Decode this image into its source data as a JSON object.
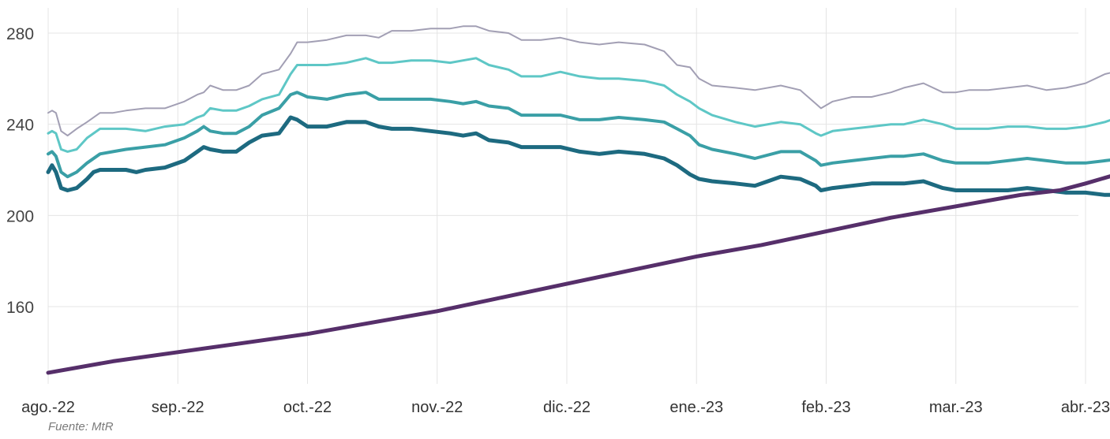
{
  "source": "Fuente: MtR",
  "chart_data": {
    "type": "line",
    "title": "",
    "xlabel": "",
    "ylabel": "",
    "x_ticks": [
      "ago.-22",
      "sep.-22",
      "oct.-22",
      "nov.-22",
      "dic.-22",
      "ene.-23",
      "feb.-23",
      "mar.-23",
      "abr.-23"
    ],
    "y_ticks": [
      160,
      200,
      240,
      280
    ],
    "ylim": [
      125,
      290
    ],
    "grid": true,
    "legend": "none",
    "series": [
      {
        "color": "#a29fb4",
        "end_label": "265",
        "values": [
          [
            0,
            245
          ],
          [
            0.03,
            246
          ],
          [
            0.06,
            245
          ],
          [
            0.1,
            237
          ],
          [
            0.15,
            235
          ],
          [
            0.22,
            238
          ],
          [
            0.3,
            241
          ],
          [
            0.4,
            245
          ],
          [
            0.5,
            245
          ],
          [
            0.6,
            246
          ],
          [
            0.75,
            247
          ],
          [
            0.9,
            247
          ],
          [
            1.05,
            250
          ],
          [
            1.15,
            253
          ],
          [
            1.2,
            254
          ],
          [
            1.25,
            257
          ],
          [
            1.35,
            255
          ],
          [
            1.45,
            255
          ],
          [
            1.55,
            257
          ],
          [
            1.65,
            262
          ],
          [
            1.78,
            264
          ],
          [
            1.87,
            271
          ],
          [
            1.92,
            276
          ],
          [
            2.0,
            276
          ],
          [
            2.15,
            277
          ],
          [
            2.3,
            279
          ],
          [
            2.45,
            279
          ],
          [
            2.55,
            278
          ],
          [
            2.65,
            281
          ],
          [
            2.8,
            281
          ],
          [
            2.95,
            282
          ],
          [
            3.1,
            282
          ],
          [
            3.2,
            283
          ],
          [
            3.3,
            283
          ],
          [
            3.4,
            281
          ],
          [
            3.55,
            280
          ],
          [
            3.65,
            277
          ],
          [
            3.8,
            277
          ],
          [
            3.95,
            278
          ],
          [
            4.1,
            276
          ],
          [
            4.25,
            275
          ],
          [
            4.4,
            276
          ],
          [
            4.6,
            275
          ],
          [
            4.75,
            272
          ],
          [
            4.85,
            266
          ],
          [
            4.95,
            265
          ],
          [
            5.02,
            260
          ],
          [
            5.12,
            257
          ],
          [
            5.3,
            256
          ],
          [
            5.45,
            255
          ],
          [
            5.65,
            257
          ],
          [
            5.8,
            255
          ],
          [
            5.92,
            249
          ],
          [
            5.96,
            247
          ],
          [
            6.05,
            250
          ],
          [
            6.2,
            252
          ],
          [
            6.35,
            252
          ],
          [
            6.5,
            254
          ],
          [
            6.6,
            256
          ],
          [
            6.75,
            258
          ],
          [
            6.9,
            254
          ],
          [
            7.0,
            254
          ],
          [
            7.1,
            255
          ],
          [
            7.25,
            255
          ],
          [
            7.4,
            256
          ],
          [
            7.55,
            257
          ],
          [
            7.7,
            255
          ],
          [
            7.85,
            256
          ],
          [
            8.0,
            258
          ],
          [
            8.15,
            262
          ],
          [
            8.3,
            264
          ],
          [
            8.45,
            265
          ],
          [
            8.5,
            263
          ],
          [
            8.56,
            265
          ]
        ]
      },
      {
        "color": "#5ec7c6",
        "end_label": "246",
        "values": [
          [
            0,
            236
          ],
          [
            0.03,
            237
          ],
          [
            0.06,
            236
          ],
          [
            0.1,
            229
          ],
          [
            0.15,
            228
          ],
          [
            0.22,
            229
          ],
          [
            0.3,
            234
          ],
          [
            0.4,
            238
          ],
          [
            0.5,
            238
          ],
          [
            0.6,
            238
          ],
          [
            0.75,
            237
          ],
          [
            0.9,
            239
          ],
          [
            1.05,
            240
          ],
          [
            1.15,
            243
          ],
          [
            1.2,
            244
          ],
          [
            1.25,
            247
          ],
          [
            1.35,
            246
          ],
          [
            1.45,
            246
          ],
          [
            1.55,
            248
          ],
          [
            1.65,
            251
          ],
          [
            1.78,
            253
          ],
          [
            1.87,
            262
          ],
          [
            1.92,
            266
          ],
          [
            2.0,
            266
          ],
          [
            2.15,
            266
          ],
          [
            2.3,
            267
          ],
          [
            2.45,
            269
          ],
          [
            2.55,
            267
          ],
          [
            2.65,
            267
          ],
          [
            2.8,
            268
          ],
          [
            2.95,
            268
          ],
          [
            3.1,
            267
          ],
          [
            3.2,
            268
          ],
          [
            3.3,
            269
          ],
          [
            3.4,
            266
          ],
          [
            3.55,
            264
          ],
          [
            3.65,
            261
          ],
          [
            3.8,
            261
          ],
          [
            3.95,
            263
          ],
          [
            4.1,
            261
          ],
          [
            4.25,
            260
          ],
          [
            4.4,
            260
          ],
          [
            4.6,
            259
          ],
          [
            4.75,
            257
          ],
          [
            4.85,
            253
          ],
          [
            4.95,
            250
          ],
          [
            5.02,
            247
          ],
          [
            5.12,
            244
          ],
          [
            5.3,
            241
          ],
          [
            5.45,
            239
          ],
          [
            5.65,
            241
          ],
          [
            5.8,
            240
          ],
          [
            5.92,
            236
          ],
          [
            5.96,
            235
          ],
          [
            6.05,
            237
          ],
          [
            6.2,
            238
          ],
          [
            6.35,
            239
          ],
          [
            6.5,
            240
          ],
          [
            6.6,
            240
          ],
          [
            6.75,
            242
          ],
          [
            6.9,
            240
          ],
          [
            7.0,
            238
          ],
          [
            7.1,
            238
          ],
          [
            7.25,
            238
          ],
          [
            7.4,
            239
          ],
          [
            7.55,
            239
          ],
          [
            7.7,
            238
          ],
          [
            7.85,
            238
          ],
          [
            8.0,
            239
          ],
          [
            8.15,
            241
          ],
          [
            8.3,
            244
          ],
          [
            8.45,
            246
          ],
          [
            8.5,
            244
          ],
          [
            8.56,
            246
          ]
        ]
      },
      {
        "color": "#3a9fa6",
        "end_label": "226",
        "values": [
          [
            0,
            227
          ],
          [
            0.03,
            228
          ],
          [
            0.06,
            226
          ],
          [
            0.1,
            219
          ],
          [
            0.15,
            217
          ],
          [
            0.22,
            219
          ],
          [
            0.3,
            223
          ],
          [
            0.4,
            227
          ],
          [
            0.5,
            228
          ],
          [
            0.6,
            229
          ],
          [
            0.75,
            230
          ],
          [
            0.9,
            231
          ],
          [
            1.05,
            234
          ],
          [
            1.15,
            237
          ],
          [
            1.2,
            239
          ],
          [
            1.25,
            237
          ],
          [
            1.35,
            236
          ],
          [
            1.45,
            236
          ],
          [
            1.55,
            239
          ],
          [
            1.65,
            244
          ],
          [
            1.78,
            247
          ],
          [
            1.87,
            253
          ],
          [
            1.92,
            254
          ],
          [
            2.0,
            252
          ],
          [
            2.15,
            251
          ],
          [
            2.3,
            253
          ],
          [
            2.45,
            254
          ],
          [
            2.55,
            251
          ],
          [
            2.65,
            251
          ],
          [
            2.8,
            251
          ],
          [
            2.95,
            251
          ],
          [
            3.1,
            250
          ],
          [
            3.2,
            249
          ],
          [
            3.3,
            250
          ],
          [
            3.4,
            248
          ],
          [
            3.55,
            247
          ],
          [
            3.65,
            244
          ],
          [
            3.8,
            244
          ],
          [
            3.95,
            244
          ],
          [
            4.1,
            242
          ],
          [
            4.25,
            242
          ],
          [
            4.4,
            243
          ],
          [
            4.6,
            242
          ],
          [
            4.75,
            241
          ],
          [
            4.85,
            238
          ],
          [
            4.95,
            235
          ],
          [
            5.02,
            231
          ],
          [
            5.12,
            229
          ],
          [
            5.3,
            227
          ],
          [
            5.45,
            225
          ],
          [
            5.65,
            228
          ],
          [
            5.8,
            228
          ],
          [
            5.92,
            224
          ],
          [
            5.96,
            222
          ],
          [
            6.05,
            223
          ],
          [
            6.2,
            224
          ],
          [
            6.35,
            225
          ],
          [
            6.5,
            226
          ],
          [
            6.6,
            226
          ],
          [
            6.75,
            227
          ],
          [
            6.9,
            224
          ],
          [
            7.0,
            223
          ],
          [
            7.1,
            223
          ],
          [
            7.25,
            223
          ],
          [
            7.4,
            224
          ],
          [
            7.55,
            225
          ],
          [
            7.7,
            224
          ],
          [
            7.85,
            223
          ],
          [
            8.0,
            223
          ],
          [
            8.15,
            224
          ],
          [
            8.3,
            225
          ],
          [
            8.45,
            225
          ],
          [
            8.5,
            224
          ],
          [
            8.56,
            226
          ]
        ]
      },
      {
        "color": "#1d6a80",
        "end_label": "209",
        "values": [
          [
            0,
            219
          ],
          [
            0.03,
            222
          ],
          [
            0.06,
            219
          ],
          [
            0.1,
            212
          ],
          [
            0.15,
            211
          ],
          [
            0.22,
            212
          ],
          [
            0.3,
            216
          ],
          [
            0.35,
            219
          ],
          [
            0.4,
            220
          ],
          [
            0.5,
            220
          ],
          [
            0.6,
            220
          ],
          [
            0.68,
            219
          ],
          [
            0.75,
            220
          ],
          [
            0.9,
            221
          ],
          [
            1.05,
            224
          ],
          [
            1.15,
            228
          ],
          [
            1.2,
            230
          ],
          [
            1.25,
            229
          ],
          [
            1.35,
            228
          ],
          [
            1.45,
            228
          ],
          [
            1.55,
            232
          ],
          [
            1.65,
            235
          ],
          [
            1.78,
            236
          ],
          [
            1.87,
            243
          ],
          [
            1.92,
            242
          ],
          [
            2.0,
            239
          ],
          [
            2.15,
            239
          ],
          [
            2.3,
            241
          ],
          [
            2.45,
            241
          ],
          [
            2.55,
            239
          ],
          [
            2.65,
            238
          ],
          [
            2.8,
            238
          ],
          [
            2.95,
            237
          ],
          [
            3.1,
            236
          ],
          [
            3.2,
            235
          ],
          [
            3.3,
            236
          ],
          [
            3.4,
            233
          ],
          [
            3.55,
            232
          ],
          [
            3.65,
            230
          ],
          [
            3.8,
            230
          ],
          [
            3.95,
            230
          ],
          [
            4.1,
            228
          ],
          [
            4.25,
            227
          ],
          [
            4.4,
            228
          ],
          [
            4.6,
            227
          ],
          [
            4.75,
            225
          ],
          [
            4.85,
            222
          ],
          [
            4.95,
            218
          ],
          [
            5.02,
            216
          ],
          [
            5.12,
            215
          ],
          [
            5.3,
            214
          ],
          [
            5.45,
            213
          ],
          [
            5.55,
            215
          ],
          [
            5.65,
            217
          ],
          [
            5.8,
            216
          ],
          [
            5.92,
            213
          ],
          [
            5.96,
            211
          ],
          [
            6.05,
            212
          ],
          [
            6.2,
            213
          ],
          [
            6.35,
            214
          ],
          [
            6.5,
            214
          ],
          [
            6.6,
            214
          ],
          [
            6.75,
            215
          ],
          [
            6.9,
            212
          ],
          [
            7.0,
            211
          ],
          [
            7.1,
            211
          ],
          [
            7.25,
            211
          ],
          [
            7.4,
            211
          ],
          [
            7.55,
            212
          ],
          [
            7.7,
            211
          ],
          [
            7.85,
            210
          ],
          [
            8.0,
            210
          ],
          [
            8.15,
            209
          ],
          [
            8.3,
            209
          ],
          [
            8.45,
            209
          ],
          [
            8.56,
            209
          ]
        ]
      },
      {
        "color": "#562f6a",
        "end_label": "",
        "values": [
          [
            0,
            131
          ],
          [
            0.5,
            136
          ],
          [
            1.0,
            140
          ],
          [
            1.5,
            144
          ],
          [
            2.0,
            148
          ],
          [
            2.5,
            153
          ],
          [
            3.0,
            158
          ],
          [
            3.5,
            164
          ],
          [
            4.0,
            170
          ],
          [
            4.5,
            176
          ],
          [
            5.0,
            182
          ],
          [
            5.5,
            187
          ],
          [
            6.0,
            193
          ],
          [
            6.5,
            199
          ],
          [
            7.0,
            204
          ],
          [
            7.5,
            209
          ],
          [
            7.8,
            211
          ],
          [
            8.0,
            214
          ],
          [
            8.3,
            219
          ],
          [
            8.56,
            209
          ]
        ]
      }
    ]
  }
}
